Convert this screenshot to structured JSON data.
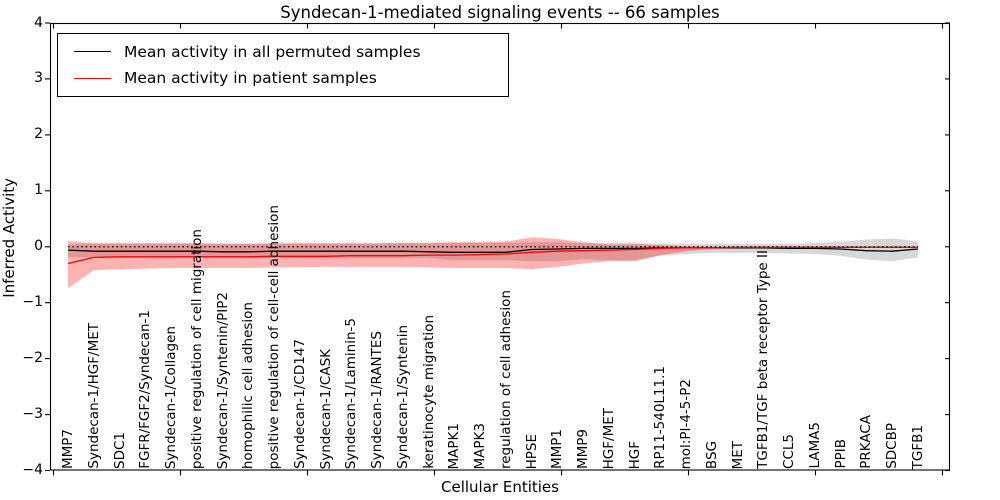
{
  "title": "Syndecan-1-mediated signaling events -- 66 samples",
  "chart_data": {
    "type": "line",
    "title": "Syndecan-1-mediated signaling events -- 66 samples",
    "xlabel": "Cellular Entities",
    "ylabel": "Inferred Activity",
    "ylim": [
      -4,
      4
    ],
    "yticks": [
      4,
      3,
      2,
      1,
      0,
      -1,
      -2,
      -3,
      -4
    ],
    "ytick_labels": [
      "4",
      "3",
      "2",
      "1",
      "0",
      "−1",
      "−2",
      "−3",
      "−4"
    ],
    "grid": false,
    "legend_position": "upper left",
    "zero_line_style": "dotted",
    "categories": [
      "MMP7",
      "Syndecan-1/HGF/MET",
      "SDC1",
      "FGFR/FGF2/Syndecan-1",
      "Syndecan-1/Collagen",
      "positive regulation of cell migration",
      "Syndecan-1/Syntenin/PIP2",
      "homophilic cell adhesion",
      "positive regulation of cell-cell adhesion",
      "Syndecan-1/CD147",
      "Syndecan-1/CASK",
      "Syndecan-1/Laminin-5",
      "Syndecan-1/RANTES",
      "Syndecan-1/Syntenin",
      "keratinocyte migration",
      "MAPK1",
      "MAPK3",
      "regulation of cell adhesion",
      "HPSE",
      "MMP1",
      "MMP9",
      "HGF/MET",
      "HGF",
      "RP11-540L11.1",
      "mol:PI-4-5-P2",
      "BSG",
      "MET",
      "TGFB1/TGF beta receptor Type II",
      "CCL5",
      "LAMA5",
      "PPIB",
      "PRKACA",
      "SDCBP",
      "TGFB1"
    ],
    "series": [
      {
        "name": "Mean activity in all permuted samples",
        "color": "#000000",
        "band_color": "rgba(110,110,110,0.28)",
        "values": [
          -0.06,
          -0.08,
          -0.08,
          -0.08,
          -0.08,
          -0.08,
          -0.09,
          -0.09,
          -0.08,
          -0.08,
          -0.08,
          -0.08,
          -0.08,
          -0.08,
          -0.09,
          -0.1,
          -0.1,
          -0.1,
          -0.05,
          -0.04,
          -0.03,
          -0.03,
          -0.03,
          -0.02,
          -0.02,
          -0.02,
          -0.02,
          -0.02,
          -0.03,
          -0.03,
          -0.04,
          -0.07,
          -0.08,
          -0.04
        ],
        "band_upper": [
          0.04,
          0.06,
          0.06,
          0.06,
          0.06,
          0.06,
          0.06,
          0.06,
          0.06,
          0.06,
          0.06,
          0.06,
          0.06,
          0.06,
          0.06,
          0.07,
          0.07,
          0.07,
          0.08,
          0.08,
          0.06,
          0.07,
          0.07,
          0.05,
          0.05,
          0.05,
          0.05,
          0.05,
          0.05,
          0.07,
          0.09,
          0.13,
          0.15,
          0.1
        ],
        "band_lower": [
          -0.18,
          -0.2,
          -0.2,
          -0.2,
          -0.2,
          -0.2,
          -0.2,
          -0.2,
          -0.2,
          -0.2,
          -0.2,
          -0.2,
          -0.2,
          -0.2,
          -0.2,
          -0.24,
          -0.24,
          -0.24,
          -0.26,
          -0.26,
          -0.22,
          -0.24,
          -0.24,
          -0.16,
          -0.13,
          -0.11,
          -0.11,
          -0.11,
          -0.12,
          -0.13,
          -0.16,
          -0.23,
          -0.26,
          -0.19
        ]
      },
      {
        "name": "Mean activity in patient samples",
        "color": "#ff0000",
        "band_color": "rgba(255,0,0,0.30)",
        "values": [
          -0.3,
          -0.19,
          -0.18,
          -0.18,
          -0.18,
          -0.18,
          -0.18,
          -0.18,
          -0.17,
          -0.17,
          -0.17,
          -0.16,
          -0.16,
          -0.16,
          -0.15,
          -0.15,
          -0.14,
          -0.13,
          -0.1,
          -0.08,
          -0.07,
          -0.06,
          -0.05,
          -0.03,
          -0.02,
          -0.02,
          -0.01,
          -0.01,
          -0.01,
          -0.01,
          -0.01,
          -0.01,
          -0.01,
          -0.01
        ],
        "band_upper": [
          0.1,
          0.06,
          0.06,
          0.06,
          0.06,
          0.06,
          0.05,
          0.05,
          0.06,
          0.06,
          0.06,
          0.06,
          0.06,
          0.07,
          0.07,
          0.08,
          0.08,
          0.09,
          0.17,
          0.14,
          0.08,
          0.04,
          0.05,
          0.03,
          0.01,
          0.0,
          0.0,
          0.0,
          0.0,
          0.0,
          0.0,
          0.0,
          0.0,
          0.0
        ],
        "band_lower": [
          -0.74,
          -0.42,
          -0.4,
          -0.39,
          -0.38,
          -0.38,
          -0.38,
          -0.38,
          -0.37,
          -0.37,
          -0.36,
          -0.36,
          -0.36,
          -0.36,
          -0.37,
          -0.38,
          -0.38,
          -0.38,
          -0.4,
          -0.36,
          -0.3,
          -0.26,
          -0.26,
          -0.15,
          -0.08,
          -0.04,
          -0.03,
          -0.02,
          -0.02,
          -0.02,
          -0.02,
          -0.02,
          -0.02,
          -0.02
        ]
      }
    ]
  }
}
